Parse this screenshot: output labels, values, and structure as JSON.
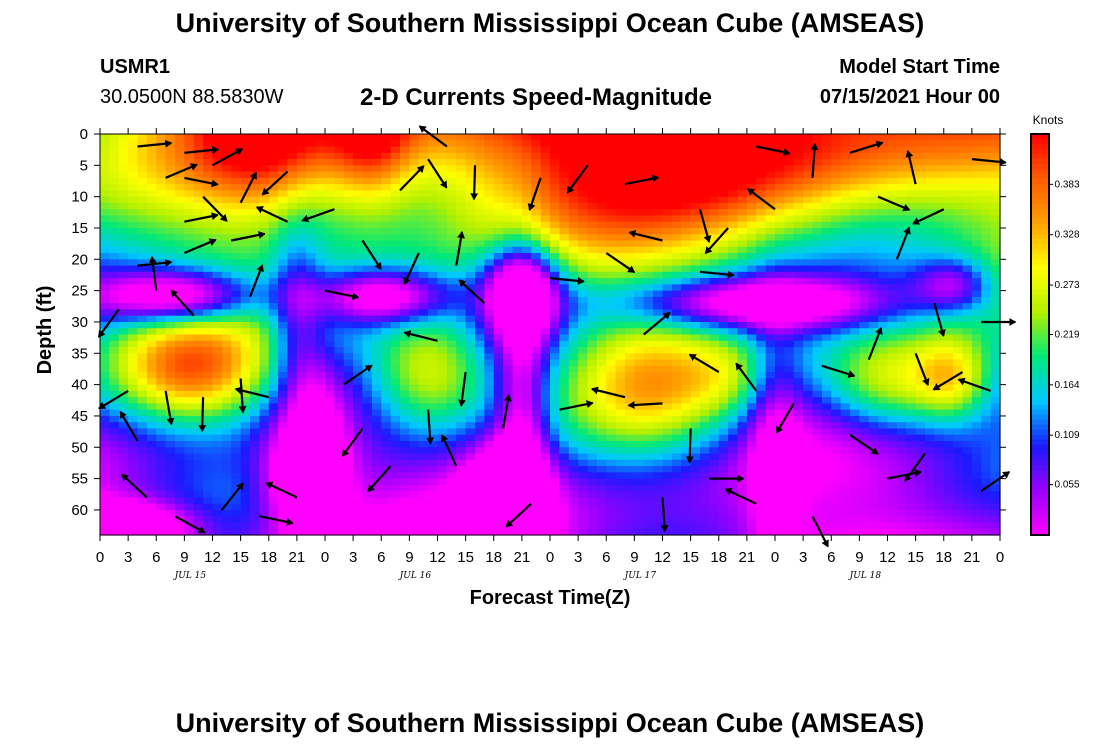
{
  "header": {
    "title": "University of Southern Mississippi Ocean Cube (AMSEAS)",
    "station": "USMR1",
    "coords": "30.0500N  88.5830W",
    "plot_title": "2-D Currents Speed-Magnitude",
    "model_start_label": "Model Start Time",
    "model_start_value": "07/15/2021 Hour 00"
  },
  "footer": {
    "title": "University of Southern Mississippi Ocean Cube (AMSEAS)"
  },
  "chart_data": {
    "type": "heatmap",
    "title": "2-D Currents Speed-Magnitude",
    "xlabel": "Forecast Time(Z)",
    "ylabel": "Depth (ft)",
    "x_ticks": [
      "0",
      "3",
      "6",
      "9",
      "12",
      "15",
      "18",
      "21",
      "0",
      "3",
      "6",
      "9",
      "12",
      "15",
      "18",
      "21",
      "0",
      "3",
      "6",
      "9",
      "12",
      "15",
      "18",
      "21",
      "0",
      "3",
      "6",
      "9",
      "12",
      "15",
      "18",
      "21",
      "0"
    ],
    "date_labels": [
      "JUL 15",
      "JUL 16",
      "JUL 17",
      "JUL 18"
    ],
    "x_range_hours": [
      0,
      96
    ],
    "y_ticks": [
      0,
      5,
      10,
      15,
      20,
      25,
      30,
      35,
      40,
      45,
      50,
      55,
      60
    ],
    "ylim": [
      0,
      64
    ],
    "y_inverted": true,
    "colorbar": {
      "unit": "Knots",
      "ticks": [
        0.383,
        0.328,
        0.273,
        0.219,
        0.164,
        0.109,
        0.055
      ],
      "range": [
        0,
        0.438
      ],
      "colors": [
        "#ff00ff",
        "#9900ff",
        "#1a1aff",
        "#00c8ff",
        "#00e87a",
        "#b4f000",
        "#ffff00",
        "#ffa000",
        "#ff5a00",
        "#ff0000"
      ]
    },
    "grid": "vectors with shaded speed field",
    "blobs": [
      {
        "t": 17,
        "d": -2,
        "st": 5,
        "sd": 10,
        "v": 0.2
      },
      {
        "t": 29,
        "d": -2,
        "st": 3,
        "sd": 9,
        "v": 0.22
      },
      {
        "t": 60,
        "d": -1,
        "st": 28,
        "sd": 13,
        "v": 0.4
      },
      {
        "t": 8,
        "d": 26,
        "st": 6,
        "sd": 3,
        "v": -0.35
      },
      {
        "t": 30,
        "d": 26,
        "st": 5,
        "sd": 3,
        "v": -0.3
      },
      {
        "t": 45,
        "d": 25,
        "st": 3,
        "sd": 5,
        "v": -0.35
      },
      {
        "t": 70,
        "d": 27,
        "st": 10,
        "sd": 3,
        "v": -0.3
      },
      {
        "t": 91,
        "d": 24,
        "st": 3,
        "sd": 3,
        "v": -0.2
      },
      {
        "t": 10,
        "d": 38,
        "st": 6,
        "sd": 6,
        "v": 0.32
      },
      {
        "t": 35,
        "d": 38,
        "st": 5,
        "sd": 7,
        "v": 0.34
      },
      {
        "t": 59,
        "d": 40,
        "st": 7,
        "sd": 8,
        "v": 0.24
      },
      {
        "t": 67,
        "d": 39,
        "st": 3,
        "sd": 4,
        "v": 0.06
      },
      {
        "t": 84,
        "d": 40,
        "st": 5,
        "sd": 6,
        "v": 0.3
      },
      {
        "t": 91,
        "d": 39,
        "st": 3,
        "sd": 5,
        "v": 0.25
      },
      {
        "t": 22,
        "d": 55,
        "st": 3,
        "sd": 6,
        "v": -0.3
      },
      {
        "t": 43,
        "d": 58,
        "st": 3,
        "sd": 6,
        "v": -0.28
      },
      {
        "t": 3,
        "d": 63,
        "st": 5,
        "sd": 3,
        "v": -0.3
      },
      {
        "t": 21,
        "d": 28,
        "st": 2,
        "sd": 10,
        "v": -0.15
      },
      {
        "t": 45,
        "d": 45,
        "st": 2,
        "sd": 18,
        "v": -0.18
      },
      {
        "t": 72,
        "d": 50,
        "st": 2,
        "sd": 16,
        "v": -0.12
      },
      {
        "t": 23,
        "d": 48,
        "st": 2,
        "sd": 8,
        "v": -0.12
      }
    ],
    "vectors": [
      {
        "t": 7,
        "d": 7,
        "a": 0.4
      },
      {
        "t": 9,
        "d": 7,
        "a": -0.2
      },
      {
        "t": 9,
        "d": 3,
        "a": 0.1
      },
      {
        "t": 12,
        "d": 5,
        "a": 0.5
      },
      {
        "t": 9,
        "d": 14,
        "a": 0.2
      },
      {
        "t": 9,
        "d": 19,
        "a": 0.4
      },
      {
        "t": 4,
        "d": 2,
        "a": 0.1
      },
      {
        "t": 11,
        "d": 10,
        "a": -0.8
      },
      {
        "t": 15,
        "d": 11,
        "a": 1.1
      },
      {
        "t": 20,
        "d": 6,
        "a": -2.4
      },
      {
        "t": 20,
        "d": 14,
        "a": 2.7
      },
      {
        "t": 14,
        "d": 17,
        "a": 0.2
      },
      {
        "t": 2,
        "d": 28,
        "a": -2.2
      },
      {
        "t": 4,
        "d": 21,
        "a": 0.1
      },
      {
        "t": 6,
        "d": 25,
        "a": 1.7
      },
      {
        "t": 10,
        "d": 29,
        "a": 2.3
      },
      {
        "t": 16,
        "d": 26,
        "a": 1.2
      },
      {
        "t": 3,
        "d": 41,
        "a": -2.6
      },
      {
        "t": 4,
        "d": 49,
        "a": 2.1
      },
      {
        "t": 7,
        "d": 41,
        "a": -1.4
      },
      {
        "t": 11,
        "d": 42,
        "a": -1.6
      },
      {
        "t": 15,
        "d": 39,
        "a": -1.5
      },
      {
        "t": 18,
        "d": 42,
        "a": 2.9
      },
      {
        "t": 5,
        "d": 58,
        "a": 2.4
      },
      {
        "t": 8,
        "d": 61,
        "a": -0.5
      },
      {
        "t": 13,
        "d": 60,
        "a": 0.9
      },
      {
        "t": 17,
        "d": 61,
        "a": -0.2
      },
      {
        "t": 21,
        "d": 58,
        "a": 2.7
      },
      {
        "t": 26,
        "d": 40,
        "a": 0.6
      },
      {
        "t": 24,
        "d": 25,
        "a": -0.2
      },
      {
        "t": 25,
        "d": 12,
        "a": -2.8
      },
      {
        "t": 28,
        "d": 17,
        "a": -1.0
      },
      {
        "t": 32,
        "d": 9,
        "a": 0.8
      },
      {
        "t": 35,
        "d": 4,
        "a": -1.0
      },
      {
        "t": 37,
        "d": 2,
        "a": 2.5
      },
      {
        "t": 40,
        "d": 5,
        "a": -1.6
      },
      {
        "t": 34,
        "d": 19,
        "a": -2.0
      },
      {
        "t": 38,
        "d": 21,
        "a": 1.4
      },
      {
        "t": 41,
        "d": 27,
        "a": 2.4
      },
      {
        "t": 36,
        "d": 33,
        "a": 2.9
      },
      {
        "t": 39,
        "d": 38,
        "a": -1.7
      },
      {
        "t": 35,
        "d": 44,
        "a": -1.5
      },
      {
        "t": 28,
        "d": 47,
        "a": -2.2
      },
      {
        "t": 31,
        "d": 53,
        "a": -2.3
      },
      {
        "t": 38,
        "d": 53,
        "a": 2.0
      },
      {
        "t": 43,
        "d": 47,
        "a": 1.4
      },
      {
        "t": 46,
        "d": 59,
        "a": -2.4
      },
      {
        "t": 49,
        "d": 44,
        "a": 0.2
      },
      {
        "t": 48,
        "d": 23,
        "a": -0.1
      },
      {
        "t": 47,
        "d": 7,
        "a": -1.9
      },
      {
        "t": 52,
        "d": 5,
        "a": -2.2
      },
      {
        "t": 56,
        "d": 8,
        "a": 0.2
      },
      {
        "t": 54,
        "d": 19,
        "a": -0.6
      },
      {
        "t": 58,
        "d": 32,
        "a": 0.7
      },
      {
        "t": 56,
        "d": 42,
        "a": 2.9
      },
      {
        "t": 60,
        "d": 43,
        "a": 3.2
      },
      {
        "t": 63,
        "d": 47,
        "a": -1.6
      },
      {
        "t": 66,
        "d": 38,
        "a": 2.6
      },
      {
        "t": 70,
        "d": 41,
        "a": 2.2
      },
      {
        "t": 74,
        "d": 43,
        "a": -2.1
      },
      {
        "t": 77,
        "d": 37,
        "a": -0.3
      },
      {
        "t": 64,
        "d": 22,
        "a": -0.1
      },
      {
        "t": 60,
        "d": 17,
        "a": 2.9
      },
      {
        "t": 64,
        "d": 12,
        "a": -1.3
      },
      {
        "t": 67,
        "d": 15,
        "a": -2.3
      },
      {
        "t": 70,
        "d": 2,
        "a": -0.2
      },
      {
        "t": 72,
        "d": 12,
        "a": 2.5
      },
      {
        "t": 76,
        "d": 7,
        "a": 1.5
      },
      {
        "t": 80,
        "d": 3,
        "a": 0.3
      },
      {
        "t": 83,
        "d": 10,
        "a": -0.4
      },
      {
        "t": 87,
        "d": 8,
        "a": 1.8
      },
      {
        "t": 90,
        "d": 12,
        "a": -2.7
      },
      {
        "t": 93,
        "d": 4,
        "a": -0.1
      },
      {
        "t": 85,
        "d": 20,
        "a": 1.2
      },
      {
        "t": 89,
        "d": 27,
        "a": -1.3
      },
      {
        "t": 94,
        "d": 30,
        "a": 0.0
      },
      {
        "t": 82,
        "d": 36,
        "a": 1.2
      },
      {
        "t": 87,
        "d": 35,
        "a": -1.2
      },
      {
        "t": 92,
        "d": 38,
        "a": -2.6
      },
      {
        "t": 95,
        "d": 41,
        "a": 2.8
      },
      {
        "t": 80,
        "d": 48,
        "a": -0.6
      },
      {
        "t": 84,
        "d": 55,
        "a": 0.2
      },
      {
        "t": 88,
        "d": 51,
        "a": -2.2
      },
      {
        "t": 94,
        "d": 57,
        "a": 0.6
      },
      {
        "t": 70,
        "d": 59,
        "a": 2.7
      },
      {
        "t": 76,
        "d": 61,
        "a": -1.1
      },
      {
        "t": 65,
        "d": 55,
        "a": 0.0
      },
      {
        "t": 60,
        "d": 58,
        "a": -1.5
      }
    ]
  }
}
